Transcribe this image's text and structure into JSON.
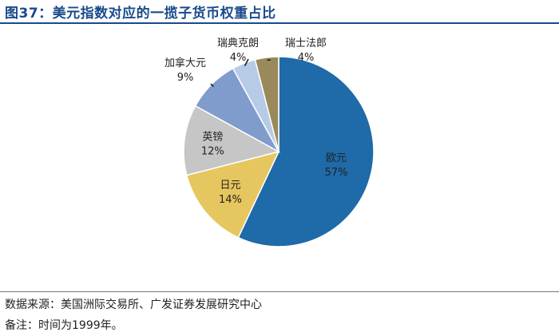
{
  "figure": {
    "title": "图37：美元指数对应的一揽子货币权重占比",
    "source": "数据来源：美国洲际交易所、广发证券发展研究中心",
    "remark": "备注：时间为1999年。"
  },
  "chart_data": {
    "type": "pie",
    "title": "图37：美元指数对应的一揽子货币权重占比",
    "unit": "%",
    "start_angle_deg": 0,
    "direction": "clockwise",
    "legend": "none",
    "slices": [
      {
        "name": "欧元",
        "value": 57,
        "label": "57%",
        "color": "#1f6aa8"
      },
      {
        "name": "日元",
        "value": 14,
        "label": "14%",
        "color": "#e6c65f"
      },
      {
        "name": "英镑",
        "value": 12,
        "label": "12%",
        "color": "#c6c6c6"
      },
      {
        "name": "加拿大元",
        "value": 9,
        "label": "9%",
        "color": "#7f9ccc"
      },
      {
        "name": "瑞典克朗",
        "value": 4,
        "label": "4%",
        "color": "#b7cbe6"
      },
      {
        "name": "瑞士法郎",
        "value": 4,
        "label": "4%",
        "color": "#9a8a5b"
      }
    ]
  }
}
